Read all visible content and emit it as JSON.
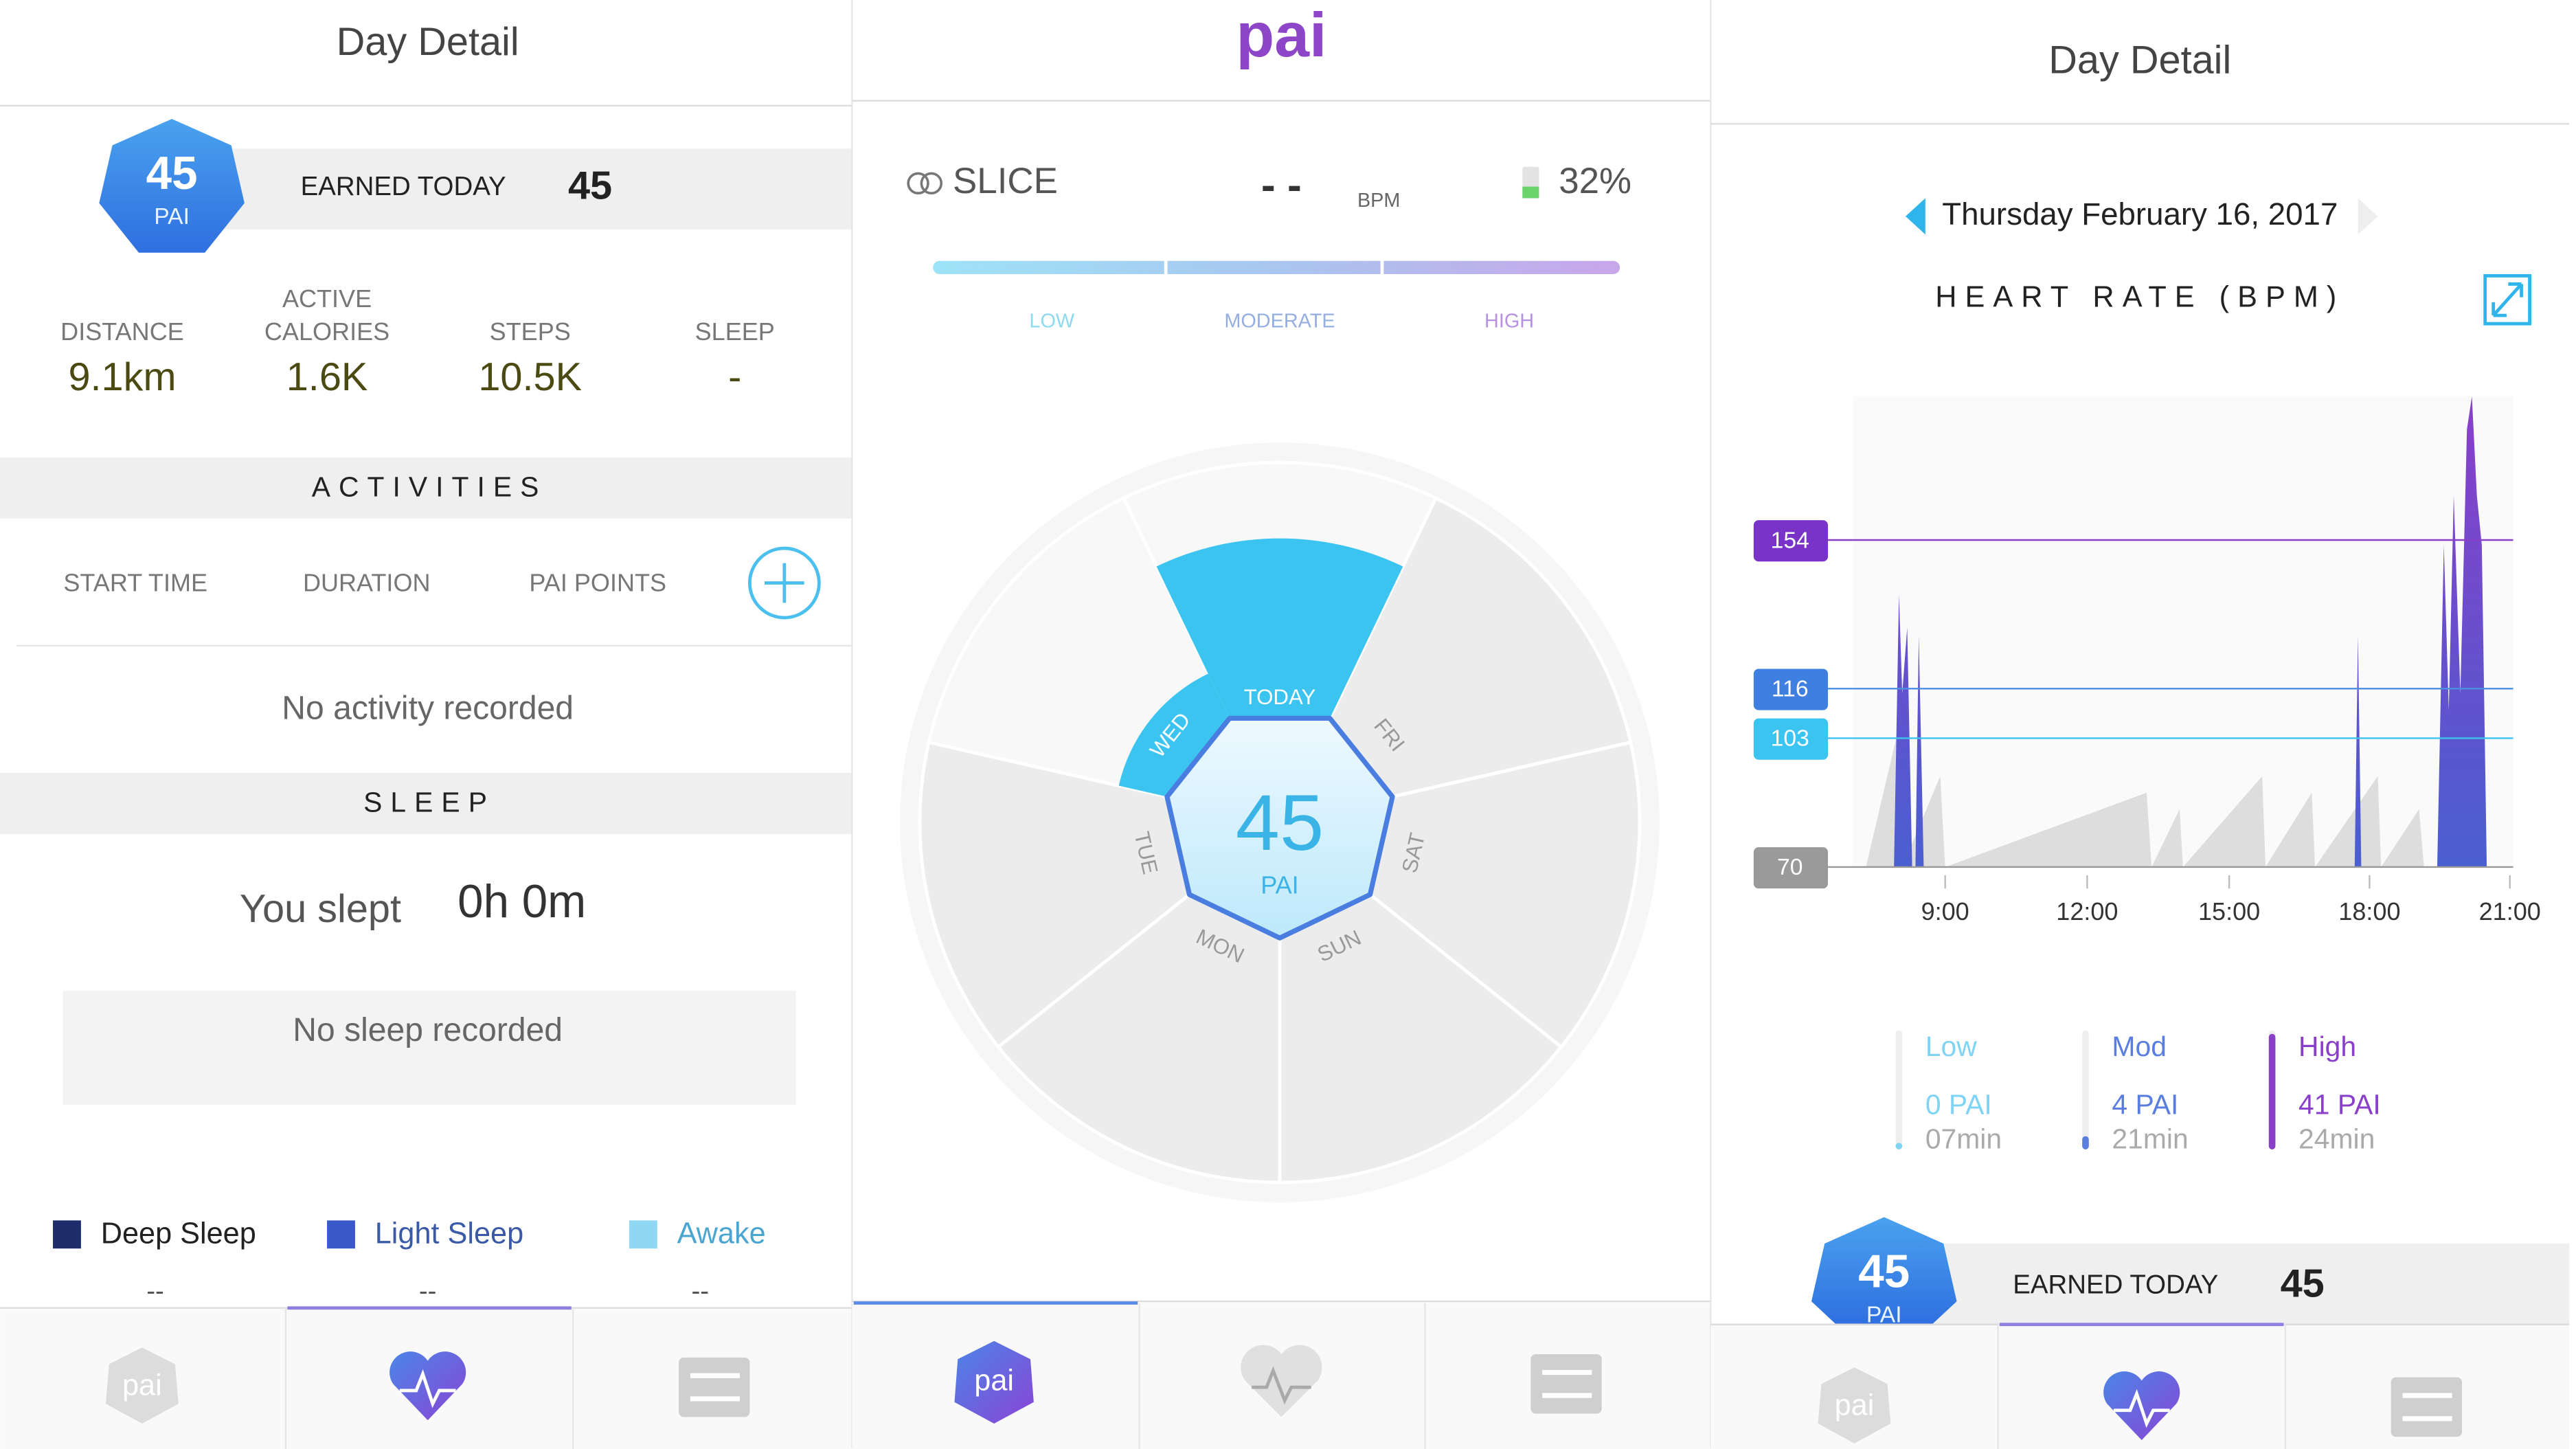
{
  "left": {
    "header": "Day Detail",
    "badge": {
      "value": "45",
      "unit": "PAI"
    },
    "earned_label": "EARNED TODAY",
    "earned_value": "45",
    "stats": [
      {
        "label_lines": [
          "DISTANCE"
        ],
        "value": "9.1km"
      },
      {
        "label_lines": [
          "ACTIVE",
          "CALORIES"
        ],
        "value": "1.6K"
      },
      {
        "label_lines": [
          "STEPS"
        ],
        "value": "10.5K"
      },
      {
        "label_lines": [
          "SLEEP"
        ],
        "value": "-"
      }
    ],
    "activities_title": "ACTIVITIES",
    "columns": [
      "START TIME",
      "DURATION",
      "PAI POINTS"
    ],
    "no_activity": "No activity recorded",
    "sleep_title": "SLEEP",
    "slept_label": "You slept",
    "slept_value": "0h 0m",
    "no_sleep": "No sleep recorded",
    "legend": [
      {
        "name": "Deep Sleep",
        "value": "--"
      },
      {
        "name": "Light Sleep",
        "value": "--"
      },
      {
        "name": "Awake",
        "value": "--"
      }
    ],
    "nav_logo": "pai"
  },
  "middle": {
    "logo": "pai",
    "device": "SLICE",
    "bpm_value": "- -",
    "bpm_unit": "BPM",
    "battery": "32%",
    "zones": [
      "LOW",
      "MODERATE",
      "HIGH"
    ],
    "days": [
      "TODAY",
      "FRI",
      "SAT",
      "SUN",
      "MON",
      "TUE",
      "WED"
    ],
    "pai_value": "45",
    "pai_unit": "PAI",
    "nav_logo": "pai"
  },
  "right": {
    "header": "Day Detail",
    "date": "Thursday February 16, 2017",
    "chart_title": "HEART RATE (BPM)",
    "thresholds": [
      "154",
      "116",
      "103",
      "70"
    ],
    "x_labels": [
      "9:00",
      "12:00",
      "15:00",
      "18:00",
      "21:00"
    ],
    "zones": [
      {
        "name": "Low",
        "pai": "0 PAI",
        "time": "07min"
      },
      {
        "name": "Mod",
        "pai": "4 PAI",
        "time": "21min"
      },
      {
        "name": "High",
        "pai": "41 PAI",
        "time": "24min"
      }
    ],
    "badge": {
      "value": "45",
      "unit": "PAI"
    },
    "earned_label": "EARNED TODAY",
    "earned_value": "45",
    "nav_logo": "pai"
  }
}
